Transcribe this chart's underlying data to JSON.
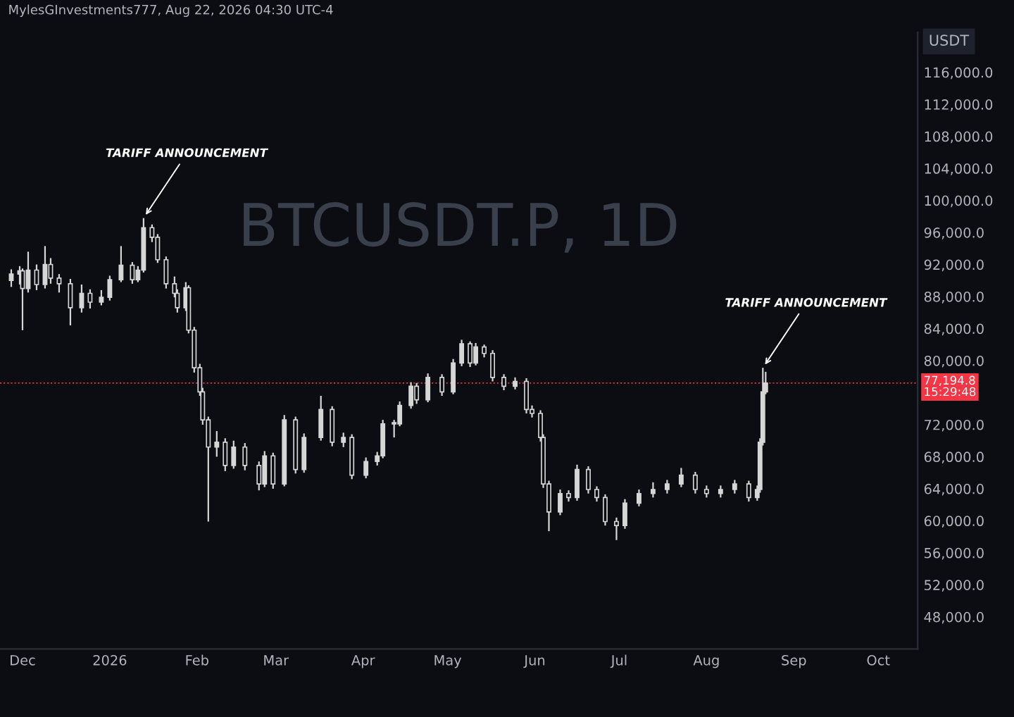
{
  "chart_data": {
    "type": "candlestick",
    "title": "BTCUSDT.P, 1D",
    "ylabel": "USDT",
    "color": "#d6d6d6",
    "x": [
      "2025-11-27",
      "2025-11-30",
      "2025-12-01",
      "2025-12-03",
      "2025-12-06",
      "2025-12-09",
      "2025-12-11",
      "2025-12-14",
      "2025-12-18",
      "2025-12-22",
      "2025-12-25",
      "2025-12-29",
      "2026-01-01",
      "2026-01-05",
      "2026-01-09",
      "2026-01-11",
      "2026-01-13",
      "2026-01-16",
      "2026-01-18",
      "2026-01-21",
      "2026-01-24",
      "2026-01-25",
      "2026-01-28",
      "2026-01-29",
      "2026-01-31",
      "2026-02-02",
      "2026-02-03",
      "2026-02-05",
      "2026-02-08",
      "2026-02-11",
      "2026-02-14",
      "2026-02-18",
      "2026-02-23",
      "2026-02-25",
      "2026-02-28",
      "2026-03-04",
      "2026-03-08",
      "2026-03-11",
      "2026-03-17",
      "2026-03-21",
      "2026-03-25",
      "2026-03-28",
      "2026-04-02",
      "2026-04-06",
      "2026-04-08",
      "2026-04-12",
      "2026-04-14",
      "2026-04-18",
      "2026-04-20",
      "2026-04-24",
      "2026-04-29",
      "2026-05-03",
      "2026-05-06",
      "2026-05-09",
      "2026-05-11",
      "2026-05-14",
      "2026-05-17",
      "2026-05-21",
      "2026-05-25",
      "2026-05-29",
      "2026-05-31",
      "2026-06-03",
      "2026-06-04",
      "2026-06-06",
      "2026-06-10",
      "2026-06-13",
      "2026-06-16",
      "2026-06-20",
      "2026-06-23",
      "2026-06-26",
      "2026-06-30",
      "2026-07-03",
      "2026-07-08",
      "2026-07-13",
      "2026-07-18",
      "2026-07-23",
      "2026-07-28",
      "2026-08-01",
      "2026-08-06",
      "2026-08-11",
      "2026-08-16",
      "2026-08-19",
      "2026-08-20",
      "2026-08-21",
      "2026-08-22"
    ],
    "ohlc": [
      [
        90000,
        91400,
        89200,
        90800
      ],
      [
        90800,
        91800,
        89500,
        91200
      ],
      [
        91200,
        91500,
        83800,
        89000
      ],
      [
        89000,
        93600,
        88500,
        91300
      ],
      [
        91300,
        92000,
        88800,
        89500
      ],
      [
        89500,
        94300,
        89000,
        92000
      ],
      [
        92000,
        92800,
        89600,
        90300
      ],
      [
        90300,
        90800,
        88500,
        89600
      ],
      [
        89600,
        90200,
        84400,
        86600
      ],
      [
        86600,
        89500,
        86000,
        88400
      ],
      [
        88400,
        88900,
        86500,
        87300
      ],
      [
        87300,
        88800,
        86900,
        87900
      ],
      [
        87900,
        90600,
        87500,
        90100
      ],
      [
        90100,
        94300,
        89800,
        91900
      ],
      [
        91900,
        92300,
        89600,
        90100
      ],
      [
        90100,
        91800,
        89800,
        91300
      ],
      [
        91300,
        97800,
        91000,
        96600
      ],
      [
        96600,
        97000,
        94800,
        95400
      ],
      [
        95400,
        95800,
        92200,
        92600
      ],
      [
        92600,
        93000,
        89000,
        89600
      ],
      [
        89600,
        90500,
        87900,
        88400
      ],
      [
        88400,
        88900,
        86000,
        86600
      ],
      [
        86600,
        89800,
        86200,
        89100
      ],
      [
        89100,
        89400,
        83400,
        83800
      ],
      [
        83800,
        84200,
        78500,
        79100
      ],
      [
        79100,
        79600,
        75600,
        76100
      ],
      [
        76100,
        76600,
        72000,
        72600
      ],
      [
        72600,
        73000,
        59900,
        69200
      ],
      [
        69200,
        71200,
        68000,
        69800
      ],
      [
        69800,
        70300,
        66200,
        66900
      ],
      [
        66900,
        70000,
        66500,
        69200
      ],
      [
        69200,
        69700,
        66300,
        66900
      ],
      [
        66900,
        67400,
        63800,
        64600
      ],
      [
        64600,
        68700,
        64200,
        68100
      ],
      [
        68100,
        68500,
        64000,
        64600
      ],
      [
        64600,
        73200,
        64300,
        72600
      ],
      [
        72600,
        73000,
        65900,
        66400
      ],
      [
        66400,
        70900,
        66000,
        70400
      ],
      [
        70400,
        75600,
        70000,
        73900
      ],
      [
        73900,
        74300,
        69300,
        69800
      ],
      [
        69800,
        71000,
        69200,
        70400
      ],
      [
        70400,
        70800,
        65200,
        65700
      ],
      [
        65700,
        67900,
        65300,
        67400
      ],
      [
        67400,
        68600,
        66900,
        68100
      ],
      [
        68100,
        72600,
        67800,
        72100
      ],
      [
        72100,
        72600,
        70400,
        72100
      ],
      [
        72100,
        74900,
        71800,
        74400
      ],
      [
        74400,
        77300,
        74000,
        76800
      ],
      [
        76800,
        77200,
        74600,
        75100
      ],
      [
        75100,
        78400,
        74800,
        77900
      ],
      [
        77900,
        78300,
        75600,
        76100
      ],
      [
        76100,
        80200,
        75800,
        79700
      ],
      [
        79700,
        82600,
        79300,
        82100
      ],
      [
        82100,
        82400,
        79200,
        79700
      ],
      [
        79700,
        82200,
        79400,
        81700
      ],
      [
        81700,
        82000,
        80400,
        80900
      ],
      [
        80900,
        81300,
        77400,
        77900
      ],
      [
        77900,
        78300,
        76300,
        76800
      ],
      [
        76800,
        77900,
        76400,
        77400
      ],
      [
        77400,
        77800,
        73400,
        73900
      ],
      [
        73900,
        74400,
        72900,
        73400
      ],
      [
        73400,
        73800,
        69900,
        70400
      ],
      [
        70400,
        70800,
        64100,
        64600
      ],
      [
        64600,
        65000,
        58700,
        61100
      ],
      [
        61100,
        63900,
        60700,
        63400
      ],
      [
        63400,
        63800,
        62400,
        62900
      ],
      [
        62900,
        67000,
        62500,
        66400
      ],
      [
        66400,
        66800,
        63400,
        63900
      ],
      [
        63900,
        64300,
        62400,
        62900
      ],
      [
        62900,
        63300,
        59400,
        59900
      ],
      [
        59900,
        60400,
        57600,
        59400
      ],
      [
        59400,
        62700,
        59000,
        62200
      ],
      [
        62200,
        63900,
        61800,
        63400
      ],
      [
        63400,
        64800,
        62900,
        63900
      ],
      [
        63900,
        65100,
        63400,
        64600
      ],
      [
        64600,
        66600,
        64200,
        65700
      ],
      [
        65700,
        66100,
        63400,
        63900
      ],
      [
        63900,
        64400,
        62900,
        63400
      ],
      [
        63400,
        64400,
        62900,
        63900
      ],
      [
        63900,
        65100,
        63400,
        64600
      ],
      [
        64600,
        65000,
        62400,
        62900
      ],
      [
        62900,
        64400,
        62500,
        63900
      ],
      [
        63900,
        70300,
        63500,
        69800
      ],
      [
        69800,
        79100,
        69400,
        76100
      ],
      [
        76100,
        78600,
        75800,
        77194.8
      ]
    ],
    "xlim": [
      "2025-11-23",
      "2026-10-15"
    ],
    "xticks": [
      {
        "value": "2025-12-01",
        "label": "Dec"
      },
      {
        "value": "2026-01-01",
        "label": "2026"
      },
      {
        "value": "2026-02-01",
        "label": "Feb"
      },
      {
        "value": "2026-03-01",
        "label": "Mar"
      },
      {
        "value": "2026-04-01",
        "label": "Apr"
      },
      {
        "value": "2026-05-01",
        "label": "May"
      },
      {
        "value": "2026-06-01",
        "label": "Jun"
      },
      {
        "value": "2026-07-01",
        "label": "Jul"
      },
      {
        "value": "2026-08-01",
        "label": "Aug"
      },
      {
        "value": "2026-09-01",
        "label": "Sep"
      },
      {
        "value": "2026-10-01",
        "label": "Oct"
      }
    ],
    "ylim": [
      44000,
      121000
    ],
    "yticks": [
      {
        "value": 48000,
        "label": "48,000.0"
      },
      {
        "value": 52000,
        "label": "52,000.0"
      },
      {
        "value": 56000,
        "label": "56,000.0"
      },
      {
        "value": 60000,
        "label": "60,000.0"
      },
      {
        "value": 64000,
        "label": "64,000.0"
      },
      {
        "value": 68000,
        "label": "68,000.0"
      },
      {
        "value": 72000,
        "label": "72,000.0"
      },
      {
        "value": 80000,
        "label": "80,000.0"
      },
      {
        "value": 84000,
        "label": "84,000.0"
      },
      {
        "value": 88000,
        "label": "88,000.0"
      },
      {
        "value": 92000,
        "label": "92,000.0"
      },
      {
        "value": 96000,
        "label": "96,000.0"
      },
      {
        "value": 100000,
        "label": "100,000.0"
      },
      {
        "value": 104000,
        "label": "104,000.0"
      },
      {
        "value": 108000,
        "label": "108,000.0"
      },
      {
        "value": 112000,
        "label": "112,000.0"
      },
      {
        "value": 116000,
        "label": "116,000.0"
      }
    ],
    "ref_lines": [
      {
        "axis": "y",
        "value": 77194.8,
        "label": "77,194.8\n15:29:48",
        "color": "#f23645",
        "line_style": "dotted"
      }
    ],
    "annotations": [
      "MylesGInvestments777, Aug 22, 2026 04:30 UTC-4",
      {
        "text": "TARIFF ANNOUNCEMENT",
        "x": "2026-01-13",
        "y": 97800
      },
      {
        "text": "TARIFF ANNOUNCEMENT",
        "x": "2026-08-21",
        "y": 79100
      }
    ]
  }
}
